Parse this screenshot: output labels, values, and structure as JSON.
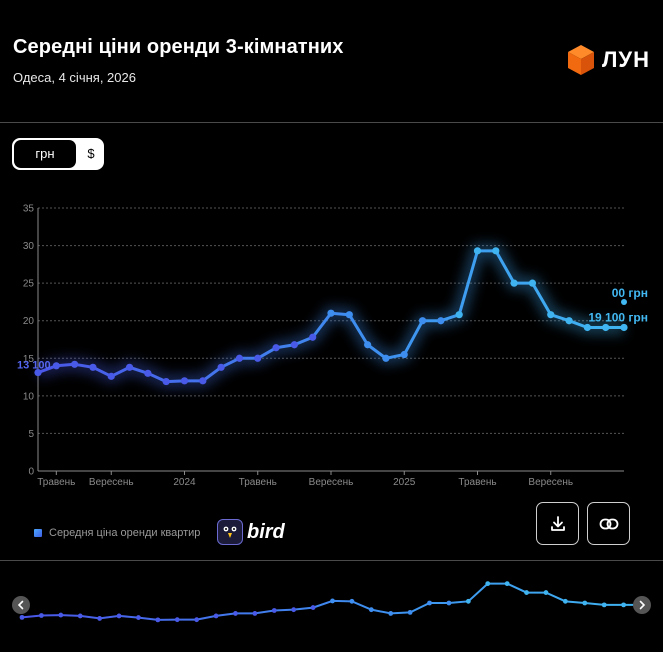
{
  "header": {
    "title": "Середні ціни оренди 3-кімнатних",
    "subtitle": "Одеса, 4 січня, 2026",
    "logo_text": "ЛУН"
  },
  "currency_toggle": {
    "options": [
      "грн",
      "$"
    ],
    "selected": "грн"
  },
  "legend": {
    "label": "Середня ціна оренди квартир"
  },
  "partner": {
    "name": "bird"
  },
  "actions": {
    "download_icon": "download-icon",
    "link_icon": "link-icon"
  },
  "colors": {
    "line_start": "#4a56e8",
    "line_end": "#3fb4f0",
    "background": "#000000",
    "grid": "#555555"
  },
  "chart_data": {
    "type": "line",
    "y_ticks": [
      0,
      5,
      10,
      15,
      20,
      25,
      30,
      35
    ],
    "ylim": [
      0,
      35
    ],
    "x_tick_labels": [
      "Травень",
      "Вересень",
      "2024",
      "Травень",
      "Вересень",
      "2025",
      "Травень",
      "Вересень"
    ],
    "grid": true,
    "start_label": "13 100",
    "end_label": "19 100 грн",
    "hover_label": "00 грн",
    "series": [
      {
        "values": [
          13.1,
          14.0,
          14.2,
          13.8,
          12.6,
          13.8,
          13.0,
          11.9,
          12.0,
          12.0,
          13.8,
          15.0,
          15.0,
          16.4,
          16.8,
          17.8,
          21.0,
          20.8,
          16.8,
          15.0,
          15.5,
          20.0,
          20.0,
          20.8,
          29.3,
          29.3,
          25.0,
          25.0,
          20.8,
          20.0,
          19.1,
          19.1,
          19.1
        ]
      }
    ]
  }
}
